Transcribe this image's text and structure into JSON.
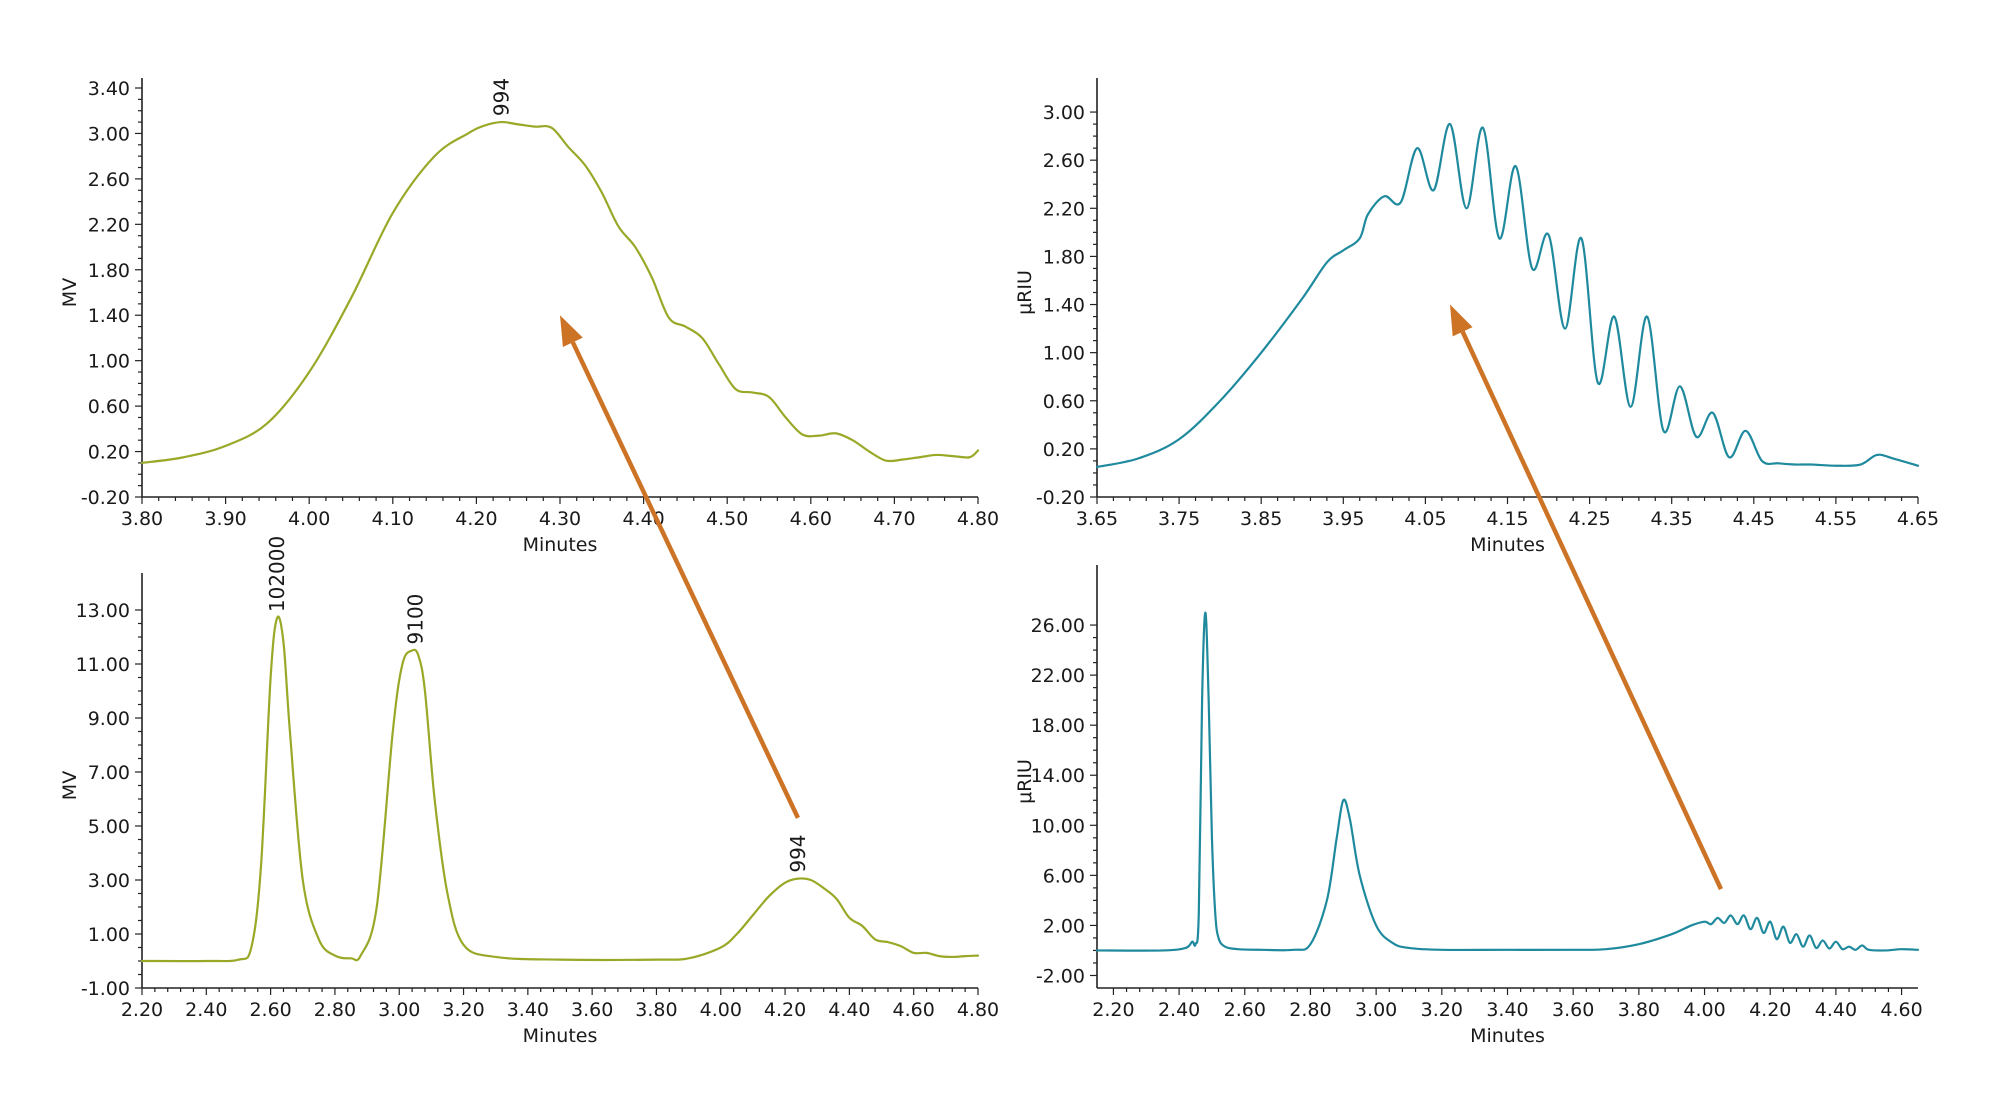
{
  "colors": {
    "mv": "#9aa827",
    "riu": "#1f8a9e",
    "arrow": "#cc7326",
    "axis": "#222222"
  },
  "chart_data": [
    {
      "type": "line",
      "id": "top-left",
      "xlabel": "Minutes",
      "ylabel": "MV",
      "xlim": [
        3.8,
        4.8
      ],
      "ylim": [
        -0.2,
        3.4
      ],
      "xticks": [
        "3.80",
        "3.90",
        "4.00",
        "4.10",
        "4.20",
        "4.30",
        "4.40",
        "4.50",
        "4.60",
        "4.70",
        "4.80"
      ],
      "yticks": [
        "-0.20",
        "0.20",
        "0.60",
        "1.00",
        "1.40",
        "1.80",
        "2.20",
        "2.60",
        "3.00",
        "3.40"
      ],
      "series": [
        {
          "color": "mv",
          "x": [
            3.8,
            3.85,
            3.9,
            3.95,
            4.0,
            4.05,
            4.1,
            4.15,
            4.19,
            4.21,
            4.23,
            4.25,
            4.27,
            4.29,
            4.31,
            4.33,
            4.35,
            4.37,
            4.39,
            4.41,
            4.43,
            4.45,
            4.47,
            4.49,
            4.51,
            4.53,
            4.55,
            4.57,
            4.59,
            4.61,
            4.63,
            4.65,
            4.67,
            4.69,
            4.71,
            4.73,
            4.75,
            4.77,
            4.79,
            4.8
          ],
          "y": [
            0.1,
            0.15,
            0.25,
            0.45,
            0.9,
            1.55,
            2.3,
            2.8,
            3.0,
            3.07,
            3.1,
            3.08,
            3.06,
            3.05,
            2.88,
            2.72,
            2.48,
            2.18,
            2.0,
            1.73,
            1.38,
            1.3,
            1.2,
            0.97,
            0.75,
            0.72,
            0.68,
            0.5,
            0.35,
            0.34,
            0.36,
            0.3,
            0.2,
            0.12,
            0.13,
            0.15,
            0.17,
            0.16,
            0.15,
            0.21
          ]
        }
      ],
      "annotations": [
        {
          "x": 4.23,
          "y": 3.1,
          "text": "994"
        }
      ]
    },
    {
      "type": "line",
      "id": "top-right",
      "xlabel": "Minutes",
      "ylabel": "μRIU",
      "xlim": [
        3.65,
        4.65
      ],
      "ylim": [
        -0.2,
        3.2
      ],
      "xticks": [
        "3.65",
        "3.75",
        "3.85",
        "3.95",
        "4.05",
        "4.15",
        "4.25",
        "4.35",
        "4.45",
        "4.55",
        "4.65"
      ],
      "yticks": [
        "-0.20",
        "0.20",
        "0.60",
        "1.00",
        "1.40",
        "1.80",
        "2.20",
        "2.60",
        "3.00"
      ],
      "series": [
        {
          "color": "riu",
          "x": [
            3.65,
            3.7,
            3.75,
            3.8,
            3.85,
            3.9,
            3.93,
            3.95,
            3.97,
            3.98,
            4.0,
            4.02,
            4.04,
            4.06,
            4.08,
            4.1,
            4.12,
            4.14,
            4.16,
            4.18,
            4.2,
            4.22,
            4.24,
            4.26,
            4.28,
            4.3,
            4.32,
            4.34,
            4.36,
            4.38,
            4.4,
            4.42,
            4.44,
            4.46,
            4.48,
            4.5,
            4.52,
            4.55,
            4.58,
            4.6,
            4.62,
            4.65
          ],
          "y": [
            0.05,
            0.12,
            0.28,
            0.6,
            1.0,
            1.45,
            1.75,
            1.85,
            1.95,
            2.15,
            2.3,
            2.25,
            2.7,
            2.35,
            2.9,
            2.2,
            2.87,
            1.95,
            2.55,
            1.7,
            1.98,
            1.2,
            1.95,
            0.75,
            1.3,
            0.55,
            1.3,
            0.35,
            0.72,
            0.3,
            0.5,
            0.13,
            0.35,
            0.1,
            0.08,
            0.07,
            0.07,
            0.06,
            0.07,
            0.15,
            0.12,
            0.06
          ]
        }
      ]
    },
    {
      "type": "line",
      "id": "bottom-left",
      "xlabel": "Minutes",
      "ylabel": "MV",
      "xlim": [
        2.2,
        4.8
      ],
      "ylim": [
        -1.0,
        14.0
      ],
      "xticks": [
        "2.20",
        "2.40",
        "2.60",
        "2.80",
        "3.00",
        "3.20",
        "3.40",
        "3.60",
        "3.80",
        "4.00",
        "4.20",
        "4.40",
        "4.60",
        "4.80"
      ],
      "yticks": [
        "-1.00",
        "1.00",
        "3.00",
        "5.00",
        "7.00",
        "9.00",
        "11.00",
        "13.00"
      ],
      "series": [
        {
          "color": "mv",
          "x": [
            2.2,
            2.4,
            2.5,
            2.54,
            2.57,
            2.6,
            2.62,
            2.64,
            2.66,
            2.7,
            2.75,
            2.8,
            2.85,
            2.88,
            2.93,
            2.98,
            3.01,
            3.04,
            3.06,
            3.08,
            3.11,
            3.15,
            3.2,
            3.3,
            3.5,
            3.8,
            3.9,
            4.0,
            4.05,
            4.1,
            4.15,
            4.2,
            4.24,
            4.28,
            4.32,
            4.36,
            4.4,
            4.44,
            4.48,
            4.52,
            4.56,
            4.6,
            4.64,
            4.68,
            4.72,
            4.76,
            4.8
          ],
          "y": [
            0.0,
            0.0,
            0.05,
            0.5,
            3.5,
            10.5,
            12.7,
            11.8,
            8.5,
            3.0,
            0.8,
            0.2,
            0.1,
            0.2,
            2.0,
            8.5,
            11.0,
            11.5,
            11.3,
            10.0,
            6.0,
            2.5,
            0.6,
            0.15,
            0.05,
            0.05,
            0.1,
            0.5,
            1.0,
            1.7,
            2.4,
            2.9,
            3.05,
            3.0,
            2.7,
            2.3,
            1.6,
            1.3,
            0.8,
            0.7,
            0.55,
            0.3,
            0.3,
            0.18,
            0.15,
            0.18,
            0.2
          ]
        }
      ],
      "annotations": [
        {
          "x": 2.62,
          "y": 12.7,
          "text": "102000"
        },
        {
          "x": 3.05,
          "y": 11.5,
          "text": "9100"
        },
        {
          "x": 4.24,
          "y": 3.05,
          "text": "994"
        }
      ]
    },
    {
      "type": "line",
      "id": "bottom-right",
      "xlabel": "Minutes",
      "ylabel": "μRIU",
      "xlim": [
        2.15,
        4.65
      ],
      "ylim": [
        -3.0,
        30.0
      ],
      "xticks": [
        "2.20",
        "2.40",
        "2.60",
        "2.80",
        "3.00",
        "3.20",
        "3.40",
        "3.60",
        "3.80",
        "4.00",
        "4.20",
        "4.40",
        "4.60"
      ],
      "yticks": [
        "-2.00",
        "2.00",
        "6.00",
        "10.00",
        "14.00",
        "18.00",
        "22.00",
        "26.00"
      ],
      "series": [
        {
          "color": "riu",
          "x": [
            2.15,
            2.35,
            2.42,
            2.44,
            2.45,
            2.46,
            2.47,
            2.48,
            2.49,
            2.5,
            2.51,
            2.52,
            2.54,
            2.58,
            2.65,
            2.75,
            2.8,
            2.85,
            2.88,
            2.9,
            2.92,
            2.95,
            3.0,
            3.05,
            3.1,
            3.2,
            3.4,
            3.6,
            3.7,
            3.8,
            3.9,
            3.96,
            4.0,
            4.02,
            4.04,
            4.06,
            4.08,
            4.1,
            4.12,
            4.14,
            4.16,
            4.18,
            4.2,
            4.22,
            4.24,
            4.26,
            4.28,
            4.3,
            4.32,
            4.34,
            4.36,
            4.38,
            4.4,
            4.42,
            4.44,
            4.46,
            4.48,
            4.5,
            4.55,
            4.6,
            4.65
          ],
          "y": [
            0.0,
            0.0,
            0.2,
            0.7,
            0.5,
            3.0,
            20.0,
            27.0,
            20.0,
            9.0,
            3.0,
            1.0,
            0.3,
            0.1,
            0.05,
            0.05,
            0.5,
            4.0,
            9.0,
            12.0,
            10.5,
            6.0,
            2.0,
            0.6,
            0.2,
            0.05,
            0.05,
            0.05,
            0.1,
            0.5,
            1.3,
            2.0,
            2.3,
            2.1,
            2.6,
            2.2,
            2.8,
            2.1,
            2.8,
            1.7,
            2.6,
            1.4,
            2.3,
            0.9,
            1.9,
            0.6,
            1.3,
            0.3,
            1.2,
            0.2,
            0.8,
            0.15,
            0.7,
            0.1,
            0.3,
            0.05,
            0.4,
            0.05,
            0.0,
            0.1,
            0.05
          ]
        }
      ]
    }
  ],
  "arrows": [
    {
      "from_chart": 2,
      "from": [
        4.24,
        5.3
      ],
      "to_chart": 0,
      "to": [
        4.3,
        1.4
      ]
    },
    {
      "from_chart": 3,
      "from": [
        4.05,
        4.9
      ],
      "to_chart": 1,
      "to": [
        4.08,
        1.4
      ]
    }
  ]
}
